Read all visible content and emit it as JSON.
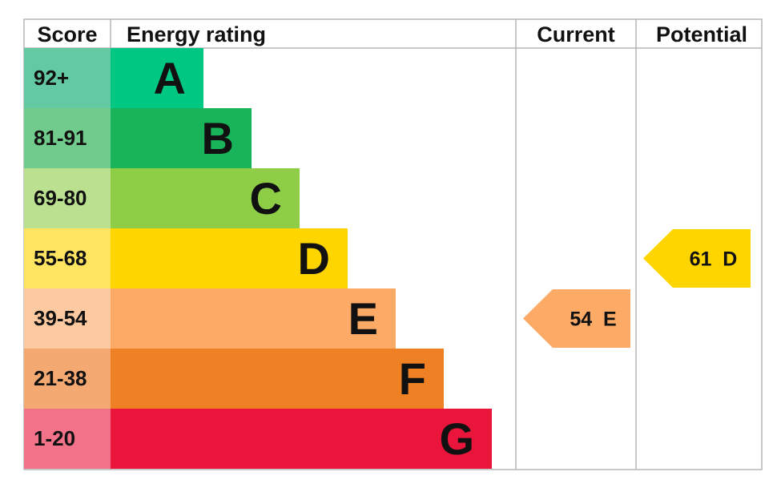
{
  "chart_data": {
    "type": "table",
    "headers": {
      "score": "Score",
      "rating": "Energy rating",
      "current": "Current",
      "potential": "Potential"
    },
    "bands": [
      {
        "letter": "A",
        "score": "92+",
        "color": "#00c781",
        "score_color": "#62c9a2"
      },
      {
        "letter": "B",
        "score": "81-91",
        "color": "#19b459",
        "score_color": "#71cb8c"
      },
      {
        "letter": "C",
        "score": "69-80",
        "color": "#8dce46",
        "score_color": "#bbe08f"
      },
      {
        "letter": "D",
        "score": "55-68",
        "color": "#ffd500",
        "score_color": "#ffe462"
      },
      {
        "letter": "E",
        "score": "39-54",
        "color": "#fcaa65",
        "score_color": "#fdc9a0"
      },
      {
        "letter": "F",
        "score": "21-38",
        "color": "#ef8023",
        "score_color": "#f4a872"
      },
      {
        "letter": "G",
        "score": "1-20",
        "color": "#e9153b",
        "score_color": "#f27289"
      }
    ],
    "current": {
      "value": 54,
      "letter": "E",
      "label": "54  E",
      "color": "#fcaa65"
    },
    "potential": {
      "value": 61,
      "letter": "D",
      "label": "61  D",
      "color": "#ffd500"
    }
  }
}
